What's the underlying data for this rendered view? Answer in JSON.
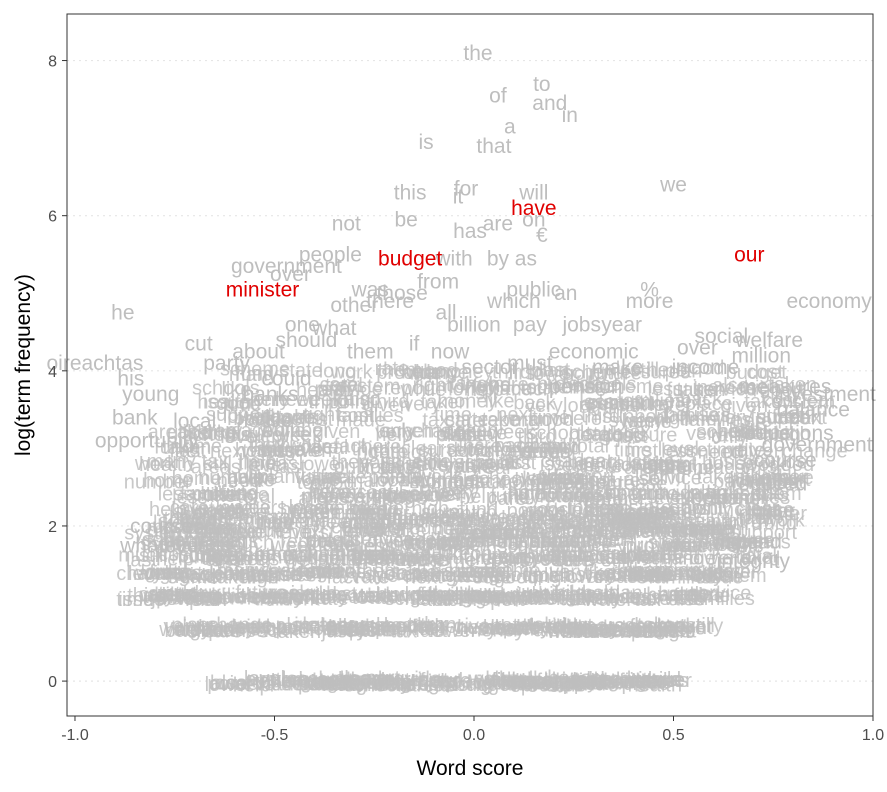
{
  "chart_data": {
    "type": "scatter",
    "title": "",
    "xlabel": "Word score",
    "ylabel": "log(term frequency)",
    "xlim": [
      -1.02,
      1.0
    ],
    "ylim": [
      -0.45,
      8.6
    ],
    "x_ticks": [
      -1.0,
      -0.5,
      0.0,
      0.5,
      1.0
    ],
    "x_tick_labels": [
      "-1.0",
      "-0.5",
      "0.0",
      "0.5",
      "1.0"
    ],
    "y_ticks": [
      0,
      2,
      4,
      6,
      8
    ],
    "y_tick_labels": [
      "0",
      "2",
      "4",
      "6",
      "8"
    ],
    "grid": true,
    "colors": {
      "background_words": "#bebebe",
      "highlight_words": "#e00000"
    },
    "highlighted_terms": [
      {
        "term": "our",
        "x": 0.69,
        "y": 5.5
      },
      {
        "term": "have",
        "x": 0.15,
        "y": 6.1
      },
      {
        "term": "budget",
        "x": -0.16,
        "y": 5.45
      },
      {
        "term": "minister",
        "x": -0.53,
        "y": 5.05
      }
    ],
    "terms": [
      {
        "term": "the",
        "x": 0.01,
        "y": 8.1
      },
      {
        "term": "to",
        "x": 0.17,
        "y": 7.7
      },
      {
        "term": "of",
        "x": 0.06,
        "y": 7.55
      },
      {
        "term": "and",
        "x": 0.19,
        "y": 7.45
      },
      {
        "term": "in",
        "x": 0.24,
        "y": 7.3
      },
      {
        "term": "a",
        "x": 0.09,
        "y": 7.15
      },
      {
        "term": "is",
        "x": -0.12,
        "y": 6.95
      },
      {
        "term": "that",
        "x": 0.05,
        "y": 6.9
      },
      {
        "term": "we",
        "x": 0.5,
        "y": 6.4
      },
      {
        "term": "this",
        "x": -0.16,
        "y": 6.3
      },
      {
        "term": "for",
        "x": -0.02,
        "y": 6.35
      },
      {
        "term": "it",
        "x": -0.04,
        "y": 6.25
      },
      {
        "term": "will",
        "x": 0.15,
        "y": 6.3
      },
      {
        "term": "not",
        "x": -0.32,
        "y": 5.9
      },
      {
        "term": "be",
        "x": -0.17,
        "y": 5.95
      },
      {
        "term": "are",
        "x": 0.06,
        "y": 5.9
      },
      {
        "term": "on",
        "x": 0.15,
        "y": 5.95
      },
      {
        "term": "has",
        "x": -0.01,
        "y": 5.8
      },
      {
        "term": "€",
        "x": 0.17,
        "y": 5.75
      },
      {
        "term": "people",
        "x": -0.36,
        "y": 5.5
      },
      {
        "term": "government",
        "x": -0.47,
        "y": 5.35
      },
      {
        "term": "with",
        "x": -0.05,
        "y": 5.45
      },
      {
        "term": "by",
        "x": 0.06,
        "y": 5.45
      },
      {
        "term": "as",
        "x": 0.13,
        "y": 5.45
      },
      {
        "term": "over",
        "x": -0.46,
        "y": 5.25
      },
      {
        "term": "from",
        "x": -0.09,
        "y": 5.15
      },
      {
        "term": "was",
        "x": -0.26,
        "y": 5.05
      },
      {
        "term": "those",
        "x": -0.18,
        "y": 5.0
      },
      {
        "term": "public",
        "x": 0.15,
        "y": 5.05
      },
      {
        "term": "an",
        "x": 0.23,
        "y": 5.0
      },
      {
        "term": "%",
        "x": 0.44,
        "y": 5.05
      },
      {
        "term": "there",
        "x": -0.21,
        "y": 4.9
      },
      {
        "term": "other",
        "x": -0.3,
        "y": 4.85
      },
      {
        "term": "which",
        "x": 0.1,
        "y": 4.9
      },
      {
        "term": "more",
        "x": 0.44,
        "y": 4.9
      },
      {
        "term": "all",
        "x": -0.07,
        "y": 4.75
      },
      {
        "term": "economy",
        "x": 0.89,
        "y": 4.9
      },
      {
        "term": "he",
        "x": -0.88,
        "y": 4.75
      },
      {
        "term": "billion",
        "x": 0.0,
        "y": 4.6
      },
      {
        "term": "pay",
        "x": 0.14,
        "y": 4.6
      },
      {
        "term": "jobs",
        "x": 0.27,
        "y": 4.6
      },
      {
        "term": "year",
        "x": 0.37,
        "y": 4.6
      },
      {
        "term": "one",
        "x": -0.43,
        "y": 4.6
      },
      {
        "term": "what",
        "x": -0.35,
        "y": 4.55
      },
      {
        "term": "should",
        "x": -0.42,
        "y": 4.4
      },
      {
        "term": "cut",
        "x": -0.69,
        "y": 4.35
      },
      {
        "term": "them",
        "x": -0.26,
        "y": 4.25
      },
      {
        "term": "if",
        "x": -0.15,
        "y": 4.35
      },
      {
        "term": "now",
        "x": -0.06,
        "y": 4.25
      },
      {
        "term": "social",
        "x": 0.62,
        "y": 4.45
      },
      {
        "term": "welfare",
        "x": 0.74,
        "y": 4.4
      },
      {
        "term": "over",
        "x": 0.56,
        "y": 4.3
      },
      {
        "term": "economic",
        "x": 0.3,
        "y": 4.25
      },
      {
        "term": "about",
        "x": -0.54,
        "y": 4.25
      },
      {
        "term": "million",
        "x": 0.72,
        "y": 4.2
      },
      {
        "term": "oireachtas",
        "x": -0.95,
        "y": 4.1
      },
      {
        "term": "party",
        "x": -0.62,
        "y": 4.1
      },
      {
        "term": "sector",
        "x": 0.04,
        "y": 4.05
      },
      {
        "term": "must",
        "x": 0.14,
        "y": 4.1
      },
      {
        "term": "make",
        "x": 0.36,
        "y": 4.05
      },
      {
        "term": "income",
        "x": 0.58,
        "y": 4.05
      },
      {
        "term": "his",
        "x": -0.86,
        "y": 3.9
      },
      {
        "term": "could",
        "x": -0.47,
        "y": 3.9
      },
      {
        "term": "banks",
        "x": -0.51,
        "y": 3.7
      },
      {
        "term": "young",
        "x": -0.81,
        "y": 3.7
      },
      {
        "term": "pension",
        "x": 0.28,
        "y": 3.8
      },
      {
        "term": "measures",
        "x": 0.78,
        "y": 3.8
      },
      {
        "term": "investment",
        "x": 0.88,
        "y": 3.7
      },
      {
        "term": "bank",
        "x": -0.85,
        "y": 3.4
      },
      {
        "term": "local",
        "x": -0.7,
        "y": 3.35
      },
      {
        "term": "balance",
        "x": 0.85,
        "y": 3.5
      },
      {
        "term": "opportunity",
        "x": -0.82,
        "y": 3.1
      },
      {
        "term": "reductions",
        "x": 0.78,
        "y": 3.2
      },
      {
        "term": "government",
        "x": 0.86,
        "y": 3.05
      },
      {
        "term": "course",
        "x": 0.78,
        "y": 2.85
      },
      {
        "term": "reduced",
        "x": 0.74,
        "y": 2.55
      },
      {
        "term": "courses",
        "x": -0.77,
        "y": 2.0
      },
      {
        "term": "whatever",
        "x": -0.78,
        "y": 1.75
      },
      {
        "term": "spend",
        "x": 0.7,
        "y": 1.8
      },
      {
        "term": "integrity",
        "x": 0.7,
        "y": 1.55
      }
    ],
    "dense_rows": [
      {
        "y": 0.0,
        "x_range": [
          -0.62,
          0.48
        ],
        "count": 120
      },
      {
        "y": 0.69,
        "x_range": [
          -0.74,
          0.58
        ],
        "count": 110
      },
      {
        "y": 1.1,
        "x_range": [
          -0.85,
          0.66
        ],
        "count": 110
      },
      {
        "y": 1.39,
        "x_range": [
          -0.82,
          0.7
        ],
        "count": 100
      },
      {
        "y": 1.61,
        "x_range": [
          -0.84,
          0.72
        ],
        "count": 90
      },
      {
        "y": 1.79,
        "x_range": [
          -0.82,
          0.74
        ],
        "count": 80
      },
      {
        "y": 1.95,
        "x_range": [
          -0.8,
          0.76
        ],
        "count": 75
      },
      {
        "y": 2.08,
        "x_range": [
          -0.78,
          0.78
        ],
        "count": 70
      },
      {
        "y": 2.2,
        "x_range": [
          -0.78,
          0.78
        ],
        "count": 65
      },
      {
        "y": 2.4,
        "x_range": [
          -0.8,
          0.8
        ],
        "count": 70
      },
      {
        "y": 2.6,
        "x_range": [
          -0.8,
          0.82
        ],
        "count": 65
      },
      {
        "y": 2.8,
        "x_range": [
          -0.8,
          0.84
        ],
        "count": 60
      },
      {
        "y": 3.0,
        "x_range": [
          -0.78,
          0.86
        ],
        "count": 55
      },
      {
        "y": 3.2,
        "x_range": [
          -0.76,
          0.86
        ],
        "count": 50
      },
      {
        "y": 3.4,
        "x_range": [
          -0.74,
          0.86
        ],
        "count": 45
      },
      {
        "y": 3.6,
        "x_range": [
          -0.7,
          0.86
        ],
        "count": 40
      },
      {
        "y": 3.8,
        "x_range": [
          -0.66,
          0.84
        ],
        "count": 35
      },
      {
        "y": 4.0,
        "x_range": [
          -0.62,
          0.8
        ],
        "count": 30
      }
    ],
    "filler_words": [
      "state",
      "work",
      "them",
      "tax",
      "time",
      "cost",
      "level",
      "plan",
      "need",
      "care",
      "rate",
      "fund",
      "sure",
      "last",
      "back",
      "real",
      "part",
      "change",
      "cuts",
      "home",
      "also",
      "very",
      "well",
      "like",
      "only",
      "much",
      "just",
      "they",
      "here",
      "first",
      "health",
      "system",
      "money",
      "years",
      "issue",
      "house",
      "water",
      "place",
      "point",
      "fact",
      "report",
      "future",
      "support",
      "service",
      "schools",
      "families",
      "increase",
      "provide",
      "number",
      "areas",
      "budget",
      "local",
      "clear",
      "scheme",
      "total",
      "take",
      "made",
      "week",
      "third",
      "still",
      "given",
      "help",
      "many",
      "next",
      "right",
      "while",
      "long",
      "good",
      "high",
      "less",
      "taken",
      "lower",
      "value"
    ]
  }
}
